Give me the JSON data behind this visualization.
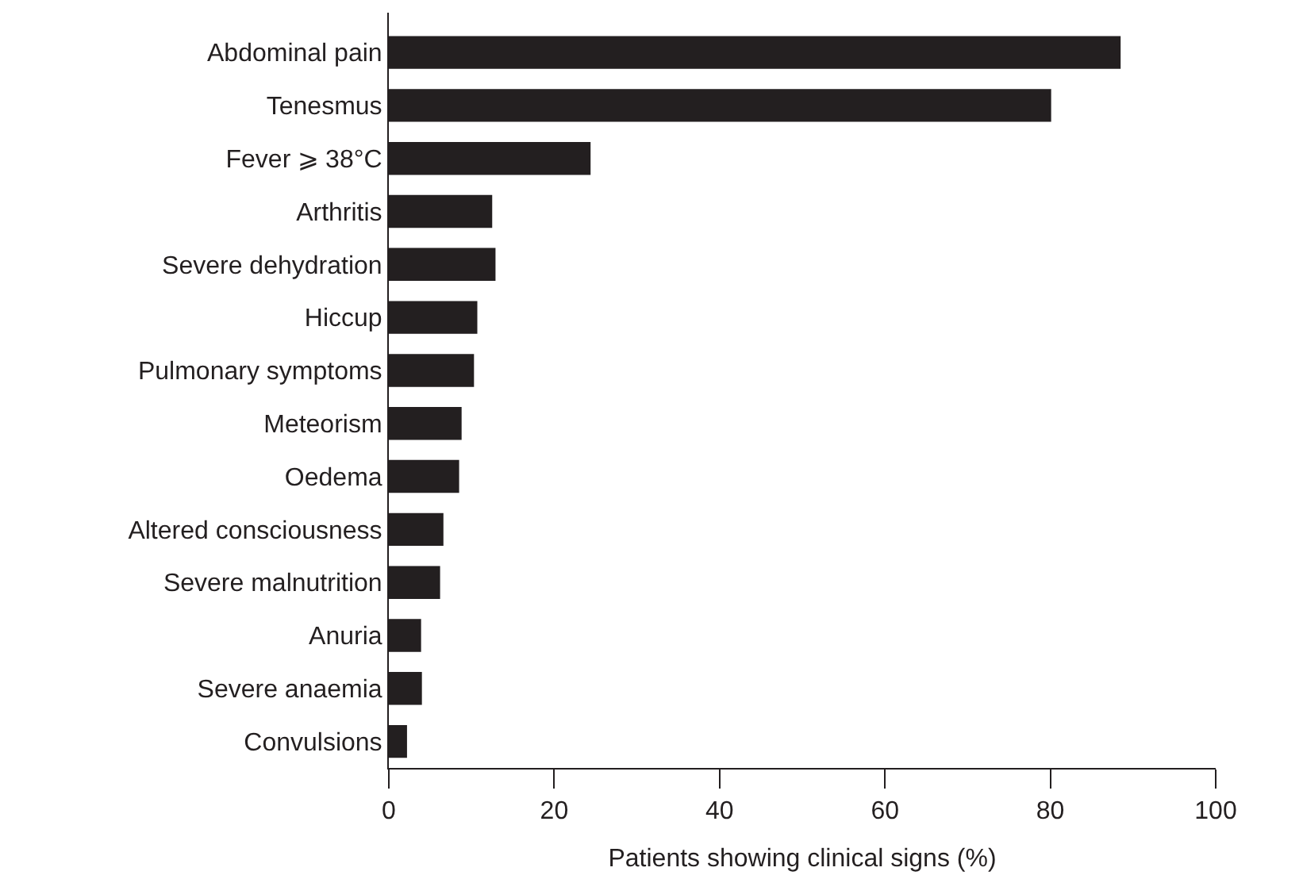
{
  "chart_data": {
    "type": "bar",
    "orientation": "horizontal",
    "xlabel": "Patients showing clinical signs (%)",
    "categories": [
      "Abdominal pain",
      "Tenesmus",
      "Fever ⩾ 38°C",
      "Arthritis",
      "Severe dehydration",
      "Hiccup",
      "Pulmonary symptoms",
      "Meteorism",
      "Oedema",
      "Altered consciousness",
      "Severe malnutrition",
      "Anuria",
      "Severe anaemia",
      "Convulsions"
    ],
    "values": [
      88.5,
      80.1,
      24.4,
      12.5,
      12.9,
      10.7,
      10.3,
      8.8,
      8.5,
      6.6,
      6.2,
      3.9,
      4.0,
      2.2
    ],
    "color": "#231f20",
    "xlim": [
      0,
      100
    ],
    "xticks": [
      0,
      20,
      40,
      60,
      80,
      100
    ]
  }
}
